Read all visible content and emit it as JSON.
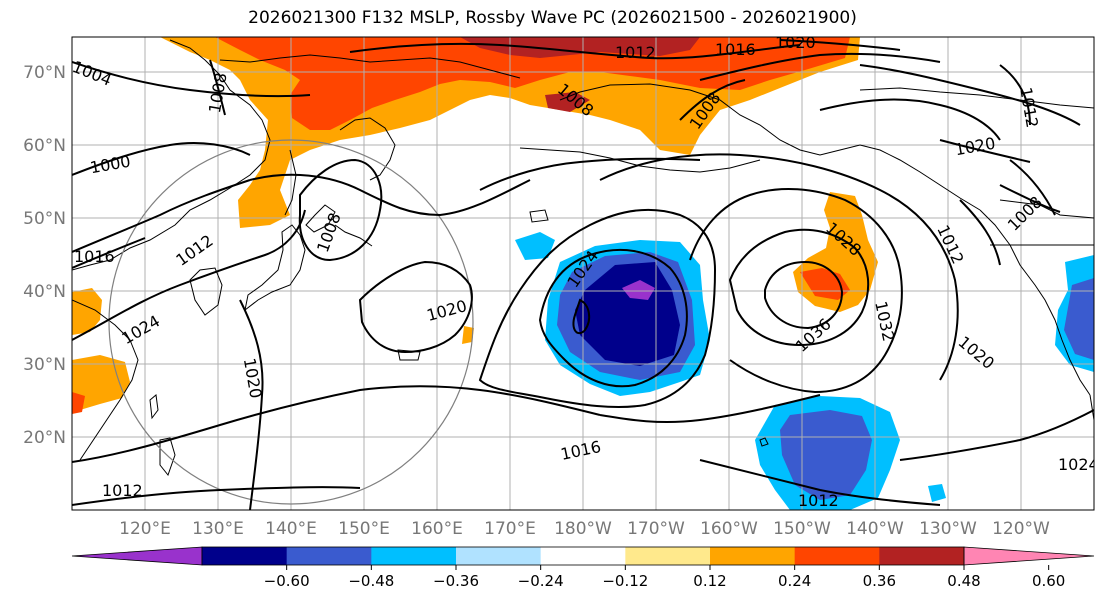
{
  "title": "2026021300 F132 MSLP, Rossby Wave PC (2026021500 - 2026021900)",
  "lat_labels": [
    "70°N",
    "60°N",
    "50°N",
    "40°N",
    "30°N",
    "20°N"
  ],
  "lon_labels": [
    "120°E",
    "130°E",
    "140°E",
    "150°E",
    "160°E",
    "170°E",
    "180°W",
    "170°W",
    "160°W",
    "150°W",
    "140°W",
    "130°W",
    "120°W"
  ],
  "contour_labels": [
    "1004",
    "1008",
    "1000",
    "1016",
    "1012",
    "1008",
    "1024",
    "1020",
    "1020",
    "1016",
    "1012",
    "1012",
    "1016",
    "1020",
    "1008",
    "1008",
    "1024",
    "1028",
    "1036",
    "1032",
    "1012",
    "1020",
    "1020",
    "1012",
    "1008",
    "1024",
    "1012"
  ],
  "colorbar": {
    "ticks": [
      "−0.60",
      "−0.48",
      "−0.36",
      "−0.24",
      "−0.12",
      "0.12",
      "0.24",
      "0.36",
      "0.48",
      "0.60"
    ],
    "colors": [
      "#9932cc",
      "#00008b",
      "#3a5bcf",
      "#00bfff",
      "#b0e2ff",
      "#ffffff",
      "#ffe98c",
      "#ffa500",
      "#ff4500",
      "#b22222",
      "#ff85b3"
    ]
  },
  "palette": {
    "neg_060": "#9932cc",
    "neg_048": "#00008b",
    "neg_036": "#3a5bcf",
    "neg_024": "#00bfff",
    "neg_012": "#b0e2ff",
    "pos_024": "#ffa500",
    "pos_036": "#ff4500",
    "pos_048": "#b22222",
    "pos_060": "#ff85b3"
  }
}
